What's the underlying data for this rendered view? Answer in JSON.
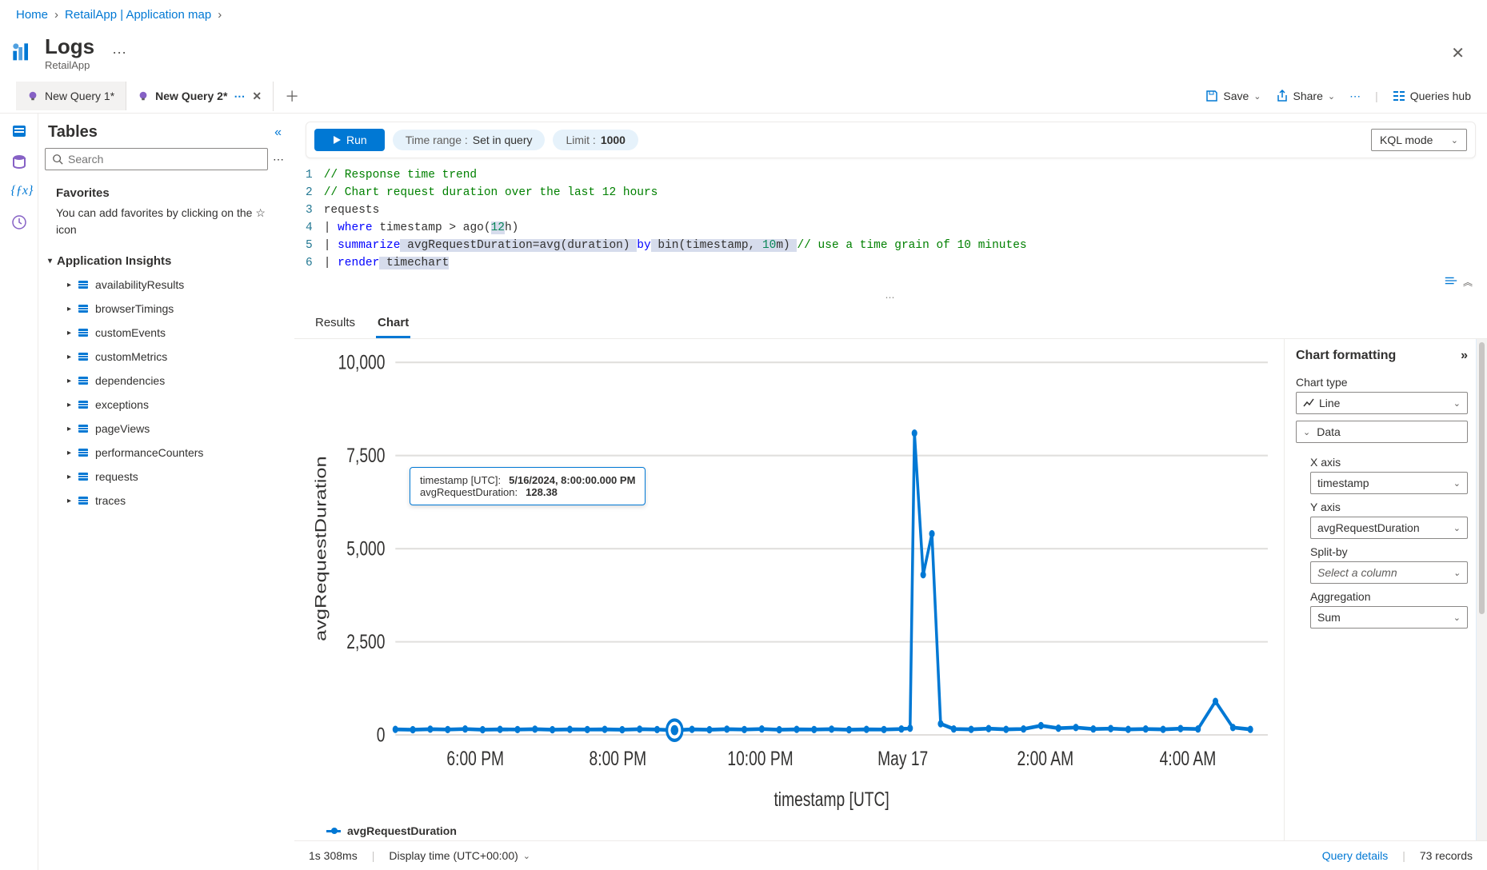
{
  "breadcrumb": {
    "home": "Home",
    "middle": "RetailApp | Application map"
  },
  "header": {
    "title": "Logs",
    "subtitle": "RetailApp"
  },
  "tabs": [
    {
      "label": "New Query 1*",
      "active": false
    },
    {
      "label": "New Query 2*",
      "active": true
    }
  ],
  "toolbar": {
    "save": "Save",
    "share": "Share",
    "queries_hub": "Queries hub"
  },
  "sidebar": {
    "title": "Tables",
    "search_placeholder": "Search",
    "favorites": "Favorites",
    "favorites_help_pre": "You can add favorites by clicking on the ",
    "favorites_help_post": " icon",
    "group": "Application Insights",
    "items": [
      "availabilityResults",
      "browserTimings",
      "customEvents",
      "customMetrics",
      "dependencies",
      "exceptions",
      "pageViews",
      "performanceCounters",
      "requests",
      "traces"
    ]
  },
  "qbar": {
    "run": "Run",
    "time_label": "Time range :",
    "time_value": "Set in query",
    "limit_label": "Limit :",
    "limit_value": "1000",
    "mode": "KQL mode"
  },
  "code": {
    "lines": [
      [
        {
          "t": "comment",
          "s": "// Response time trend"
        }
      ],
      [
        {
          "t": "comment",
          "s": "// Chart request duration over the last 12 hours"
        }
      ],
      [
        {
          "t": "plain",
          "s": "requests"
        }
      ],
      [
        {
          "t": "pipe",
          "s": "| "
        },
        {
          "t": "keyword",
          "s": "where"
        },
        {
          "t": "plain",
          "s": " timestamp > ago("
        },
        {
          "t": "num",
          "s": "12"
        },
        {
          "t": "plain",
          "s": "h)"
        }
      ],
      [
        {
          "t": "pipe",
          "s": "| "
        },
        {
          "t": "keyword",
          "s": "summarize"
        },
        {
          "t": "func",
          "s": " avgRequestDuration=avg(duration) "
        },
        {
          "t": "keyword",
          "s": "by"
        },
        {
          "t": "func",
          "s": " bin(timestamp, "
        },
        {
          "t": "num",
          "s": "10"
        },
        {
          "t": "func",
          "s": "m) "
        },
        {
          "t": "comment",
          "s": "// use a time grain of 10 minutes"
        }
      ],
      [
        {
          "t": "pipe",
          "s": "| "
        },
        {
          "t": "keyword",
          "s": "render"
        },
        {
          "t": "func",
          "s": " timechart"
        }
      ]
    ]
  },
  "results_tabs": {
    "results": "Results",
    "chart": "Chart"
  },
  "chart": {
    "type": "line",
    "y_label": "avgRequestDuration",
    "x_label": "timestamp [UTC]",
    "ylim": [
      0,
      10000
    ],
    "ytick_step": 2500,
    "yticks": [
      "0",
      "2,500",
      "5,000",
      "7,500",
      "10,000"
    ],
    "xticks": [
      "6:00 PM",
      "8:00 PM",
      "10:00 PM",
      "May 17",
      "2:00 AM",
      "4:00 AM"
    ],
    "series_color": "#0078d4",
    "line_width": 2.2,
    "grid_color": "#e1dfdd",
    "background_color": "#ffffff",
    "data": [
      {
        "x": 0.0,
        "y": 150
      },
      {
        "x": 0.02,
        "y": 140
      },
      {
        "x": 0.04,
        "y": 155
      },
      {
        "x": 0.06,
        "y": 145
      },
      {
        "x": 0.08,
        "y": 160
      },
      {
        "x": 0.1,
        "y": 140
      },
      {
        "x": 0.12,
        "y": 150
      },
      {
        "x": 0.14,
        "y": 145
      },
      {
        "x": 0.16,
        "y": 155
      },
      {
        "x": 0.18,
        "y": 140
      },
      {
        "x": 0.2,
        "y": 150
      },
      {
        "x": 0.22,
        "y": 145
      },
      {
        "x": 0.24,
        "y": 150
      },
      {
        "x": 0.26,
        "y": 140
      },
      {
        "x": 0.28,
        "y": 155
      },
      {
        "x": 0.3,
        "y": 145
      },
      {
        "x": 0.32,
        "y": 128
      },
      {
        "x": 0.34,
        "y": 150
      },
      {
        "x": 0.36,
        "y": 140
      },
      {
        "x": 0.38,
        "y": 155
      },
      {
        "x": 0.4,
        "y": 145
      },
      {
        "x": 0.42,
        "y": 160
      },
      {
        "x": 0.44,
        "y": 140
      },
      {
        "x": 0.46,
        "y": 150
      },
      {
        "x": 0.48,
        "y": 145
      },
      {
        "x": 0.5,
        "y": 155
      },
      {
        "x": 0.52,
        "y": 140
      },
      {
        "x": 0.54,
        "y": 150
      },
      {
        "x": 0.56,
        "y": 145
      },
      {
        "x": 0.58,
        "y": 160
      },
      {
        "x": 0.59,
        "y": 180
      },
      {
        "x": 0.595,
        "y": 8100
      },
      {
        "x": 0.605,
        "y": 4300
      },
      {
        "x": 0.615,
        "y": 5400
      },
      {
        "x": 0.625,
        "y": 300
      },
      {
        "x": 0.64,
        "y": 160
      },
      {
        "x": 0.66,
        "y": 150
      },
      {
        "x": 0.68,
        "y": 170
      },
      {
        "x": 0.7,
        "y": 150
      },
      {
        "x": 0.72,
        "y": 160
      },
      {
        "x": 0.74,
        "y": 250
      },
      {
        "x": 0.76,
        "y": 180
      },
      {
        "x": 0.78,
        "y": 200
      },
      {
        "x": 0.8,
        "y": 160
      },
      {
        "x": 0.82,
        "y": 170
      },
      {
        "x": 0.84,
        "y": 150
      },
      {
        "x": 0.86,
        "y": 160
      },
      {
        "x": 0.88,
        "y": 150
      },
      {
        "x": 0.9,
        "y": 170
      },
      {
        "x": 0.92,
        "y": 160
      },
      {
        "x": 0.94,
        "y": 900
      },
      {
        "x": 0.96,
        "y": 200
      },
      {
        "x": 0.98,
        "y": 150
      }
    ],
    "highlight_index": 16,
    "tooltip": {
      "row1_label": "timestamp [UTC]:",
      "row1_value": "5/16/2024, 8:00:00.000 PM",
      "row2_label": "avgRequestDuration:",
      "row2_value": "128.38"
    },
    "legend": "avgRequestDuration"
  },
  "fmt": {
    "title": "Chart formatting",
    "chart_type_label": "Chart type",
    "chart_type_value": "Line",
    "data_label": "Data",
    "x_axis_label": "X axis",
    "x_axis_value": "timestamp",
    "y_axis_label": "Y axis",
    "y_axis_value": "avgRequestDuration",
    "split_label": "Split-by",
    "split_placeholder": "Select a column",
    "agg_label": "Aggregation",
    "agg_value": "Sum"
  },
  "status": {
    "duration": "1s 308ms",
    "display_time": "Display time (UTC+00:00)",
    "query_details": "Query details",
    "records": "73 records"
  },
  "colors": {
    "primary": "#0078d4",
    "text": "#323130",
    "muted": "#605e5c",
    "border": "#edebe9"
  }
}
